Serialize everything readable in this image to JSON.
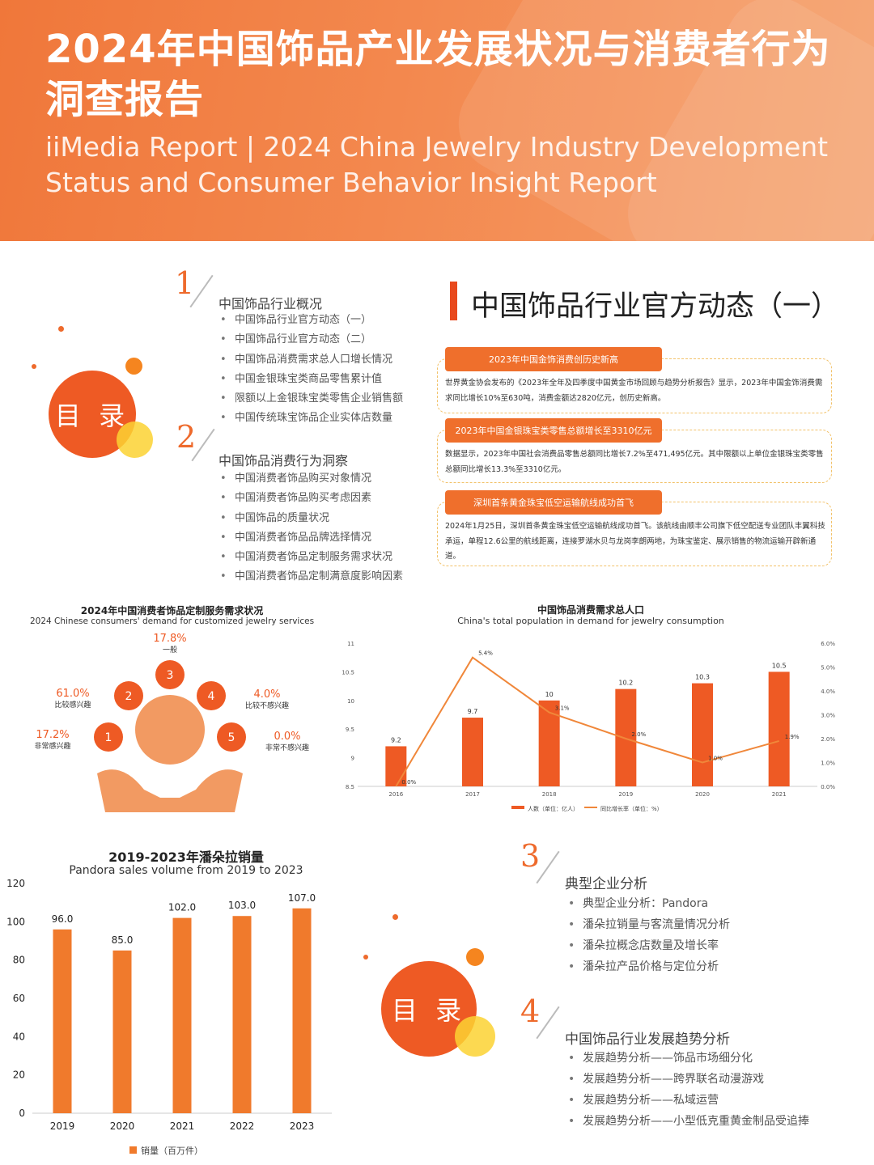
{
  "header": {
    "title_cn": "2024年中国饰品产业发展状况与消费者行为洞查报告",
    "title_en": "iiMedia Report | 2024 China Jewelry Industry Development Status and Consumer Behavior Insight Report"
  },
  "toc1": {
    "circle_label": "目 录",
    "sections": [
      {
        "num": "1",
        "title": "中国饰品行业概况",
        "items": [
          "中国饰品行业官方动态（一）",
          "中国饰品行业官方动态（二）",
          "中国饰品消费需求总人口增长情况",
          "中国金银珠宝类商品零售累计值",
          "限额以上金银珠宝类零售企业销售额",
          "中国传统珠宝饰品企业实体店数量"
        ]
      },
      {
        "num": "2",
        "title": "中国饰品消费行为洞察",
        "items": [
          "中国消费者饰品购买对象情况",
          "中国消费者饰品购买考虑因素",
          "中国饰品的质量状况",
          "中国消费者饰品品牌选择情况",
          "中国消费者饰品定制服务需求状况",
          "中国消费者饰品定制满意度影响因素"
        ]
      }
    ]
  },
  "news": {
    "title": "中国饰品行业官方动态（一）",
    "items": [
      {
        "label": "2023年中国金饰消费创历史新高",
        "text": "世界黄金协会发布的《2023年全年及四季度中国黄金市场回顾与趋势分析报告》显示，2023年中国金饰消费需求同比增长10%至630吨，消费金额达2820亿元，创历史新高。"
      },
      {
        "label": "2023年中国金银珠宝类零售总额增长至3310亿元",
        "text": "数据显示，2023年中国社会消费品零售总额同比增长7.2%至471,495亿元。其中限额以上单位金银珠宝类零售总额同比增长13.3%至3310亿元。"
      },
      {
        "label": "深圳首条黄金珠宝低空运输航线成功首飞",
        "text": "2024年1月25日，深圳首条黄金珠宝低空运输航线成功首飞。该航线由顺丰公司旗下低空配送专业团队丰翼科技承运，单程12.6公里的航线距离，连接罗湖水贝与龙岗李朗两地，为珠宝鉴定、展示销售的物流运输开辟新通道。"
      }
    ]
  },
  "custom_chart": {
    "title": "2024年中国消费者饰品定制服务需求状况",
    "subtitle": "2024 Chinese consumers' demand for customized jewelry services",
    "items": [
      {
        "num": "1",
        "pct": "17.2%",
        "label": "非常感兴趣"
      },
      {
        "num": "2",
        "pct": "61.0%",
        "label": "比较感兴趣"
      },
      {
        "num": "3",
        "pct": "17.8%",
        "label": "一般"
      },
      {
        "num": "4",
        "pct": "4.0%",
        "label": "比较不感兴趣"
      },
      {
        "num": "5",
        "pct": "0.0%",
        "label": "非常不感兴趣"
      }
    ]
  },
  "chart_data": [
    {
      "type": "bar",
      "title": "中国饰品消费需求总人口",
      "subtitle": "China's total population in demand for jewelry consumption",
      "categories": [
        "2016",
        "2017",
        "2018",
        "2019",
        "2020",
        "2021"
      ],
      "series": [
        {
          "name": "人数（单位：亿人）",
          "type": "bar",
          "values": [
            9.2,
            9.7,
            10.0,
            10.2,
            10.3,
            10.5
          ],
          "labels": [
            "9.2",
            "9.7",
            "10",
            "10.2",
            "10.3",
            "10.5"
          ]
        },
        {
          "name": "同比增长率（单位：%）",
          "type": "line",
          "values": [
            0.0,
            5.4,
            3.1,
            2.0,
            1.0,
            1.9
          ],
          "labels": [
            "0.0%",
            "5.4%",
            "3.1%",
            "2.0%",
            "1.0%",
            "1.9%"
          ]
        }
      ],
      "ylim": [
        8.5,
        11
      ],
      "yticks": [
        "8.5",
        "9",
        "9.5",
        "10",
        "10.5",
        "11"
      ],
      "y2lim": [
        0,
        6
      ],
      "y2ticks": [
        "0.0%",
        "1.0%",
        "2.0%",
        "3.0%",
        "4.0%",
        "5.0%",
        "6.0%"
      ],
      "colors": {
        "bar": "#ee5a24",
        "line": "#f0873a"
      }
    },
    {
      "type": "bar",
      "title": "2019-2023年潘朵拉销量",
      "subtitle": "Pandora sales volume from 2019 to 2023",
      "categories": [
        "2019",
        "2020",
        "2021",
        "2022",
        "2023"
      ],
      "series": [
        {
          "name": "销量（百万件）",
          "values": [
            96.0,
            85.0,
            102.0,
            103.0,
            107.0
          ],
          "labels": [
            "96.0",
            "85.0",
            "102.0",
            "103.0",
            "107.0"
          ]
        }
      ],
      "ylim": [
        0,
        120
      ],
      "yticks": [
        "0",
        "20",
        "40",
        "60",
        "80",
        "100",
        "120"
      ],
      "colors": {
        "bar": "#f07a2c"
      }
    }
  ],
  "toc2": {
    "circle_label": "目 录",
    "sections": [
      {
        "num": "3",
        "title": "典型企业分析",
        "items": [
          "典型企业分析：Pandora",
          "潘朵拉销量与客流量情况分析",
          "潘朵拉概念店数量及增长率",
          "潘朵拉产品价格与定位分析"
        ]
      },
      {
        "num": "4",
        "title": "中国饰品行业发展趋势分析",
        "items": [
          "发展趋势分析——饰品市场细分化",
          "发展趋势分析——跨界联名动漫游戏",
          "发展趋势分析——私域运营",
          "发展趋势分析——小型低克重黄金制品受追捧"
        ]
      }
    ]
  }
}
